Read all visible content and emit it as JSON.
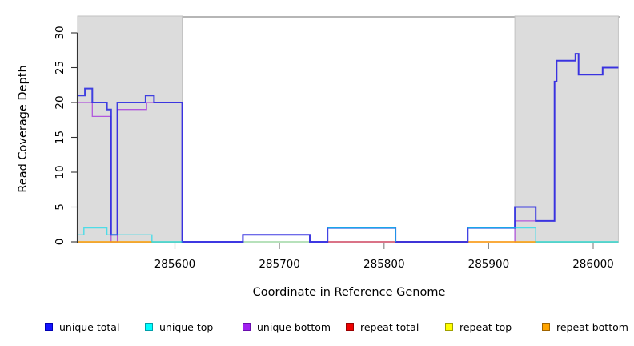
{
  "chart_data": {
    "type": "line",
    "subtype": "step-coverage-plot",
    "title": "",
    "xlabel": "Coordinate in Reference Genome",
    "ylabel": "Read Coverage Depth",
    "x_domain": [
      285507,
      286026
    ],
    "y_domain": [
      0,
      32.3
    ],
    "x_ticks": [
      285600,
      285700,
      285800,
      285900,
      286000
    ],
    "y_ticks": [
      0,
      5,
      10,
      15,
      20,
      25,
      30
    ],
    "grid": "off",
    "legend_position": "bottom",
    "shaded_regions": [
      {
        "name": "repeat-region-left",
        "x0": 285507,
        "x1": 285607,
        "fill": "#dcdcdc",
        "border": "#c2c2c2"
      },
      {
        "name": "repeat-region-right",
        "x0": 285925,
        "x1": 286024,
        "fill": "#dcdcdc",
        "border": "#c2c2c2"
      }
    ],
    "top_border_color": "#8a8a8a",
    "series": [
      {
        "name": "unique total",
        "color": "#2e2ee0",
        "segments": [
          [
            [
              285507,
              21
            ],
            [
              285514,
              22
            ],
            [
              285521,
              20
            ],
            [
              285535,
              19
            ],
            [
              285539,
              1
            ],
            [
              285545,
              20
            ],
            [
              285572,
              21
            ],
            [
              285580,
              20
            ],
            [
              285607,
              0
            ],
            [
              285665,
              1
            ],
            [
              285729,
              0
            ],
            [
              285746,
              2
            ],
            [
              285811,
              0
            ],
            [
              285880,
              2
            ],
            [
              285925,
              5
            ],
            [
              285945,
              3
            ],
            [
              285963,
              23
            ],
            [
              285965,
              26
            ],
            [
              285983,
              27
            ],
            [
              285986,
              24
            ],
            [
              286009,
              25
            ],
            [
              286024,
              25
            ]
          ]
        ]
      },
      {
        "name": "unique top",
        "color": "#00dcec",
        "segments": [
          [
            [
              285507,
              1
            ],
            [
              285513,
              2
            ],
            [
              285535,
              1
            ],
            [
              285578,
              0
            ],
            [
              285607,
              0
            ]
          ],
          [
            [
              285746,
              2
            ],
            [
              285811,
              0
            ]
          ],
          [
            [
              285880,
              2
            ],
            [
              285945,
              0
            ],
            [
              286024,
              0
            ]
          ]
        ]
      },
      {
        "name": "unique bottom",
        "color": "#a93fdd",
        "segments": [
          [
            [
              285507,
              20
            ],
            [
              285521,
              18
            ],
            [
              285539,
              0
            ],
            [
              285545,
              19
            ],
            [
              285573,
              20
            ],
            [
              285607,
              0
            ],
            [
              285665,
              1
            ],
            [
              285729,
              0
            ],
            [
              285925,
              3
            ],
            [
              285963,
              23
            ],
            [
              285965,
              26
            ],
            [
              285983,
              27
            ],
            [
              285986,
              24
            ],
            [
              286009,
              25
            ],
            [
              286024,
              25
            ]
          ]
        ]
      },
      {
        "name": "repeat total",
        "color": "#d23333",
        "segments": [
          [
            [
              285746,
              0
            ],
            [
              285880,
              0
            ]
          ]
        ]
      },
      {
        "name": "repeat top",
        "color": "#f0f000",
        "segments": []
      },
      {
        "name": "repeat bottom",
        "color": "#ff9d00",
        "segments": [
          [
            [
              285507,
              0
            ],
            [
              285578,
              0
            ]
          ],
          [
            [
              285880,
              0
            ],
            [
              285945,
              0
            ]
          ]
        ]
      }
    ],
    "baseline_overlap_segments": [
      {
        "x0": 285578,
        "x1": 285607,
        "color": "#8ccf92"
      },
      {
        "x0": 285665,
        "x1": 285729,
        "color": "#8ccf92"
      },
      {
        "x0": 285945,
        "x1": 286024,
        "color": "#8ccf92"
      }
    ],
    "legend": [
      {
        "label": "unique total",
        "fill": "#1414ff",
        "border": "#0000b4"
      },
      {
        "label": "unique top",
        "fill": "#00ffff",
        "border": "#00a0aa"
      },
      {
        "label": "unique bottom",
        "fill": "#a020f0",
        "border": "#6a0dad"
      },
      {
        "label": "repeat total",
        "fill": "#ee0000",
        "border": "#990000"
      },
      {
        "label": "repeat top",
        "fill": "#ffff00",
        "border": "#a0a000"
      },
      {
        "label": "repeat bottom",
        "fill": "#ffa500",
        "border": "#a06400"
      }
    ]
  }
}
